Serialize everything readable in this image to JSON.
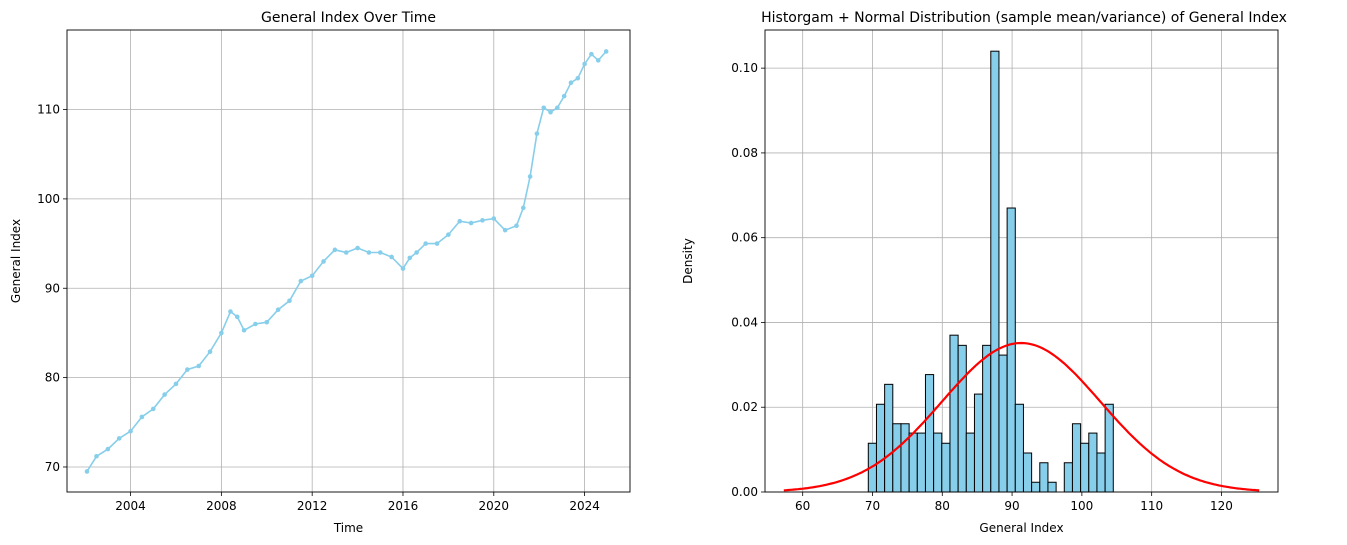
{
  "chart_data": [
    {
      "type": "line",
      "title": "General Index Over Time",
      "xlabel": "Time",
      "ylabel": "General Index",
      "xlim": [
        2001.2,
        2026.0
      ],
      "ylim": [
        67.2,
        118.9
      ],
      "xticks": [
        2004,
        2008,
        2012,
        2016,
        2020,
        2024
      ],
      "yticks": [
        70,
        80,
        90,
        100,
        110
      ],
      "grid": true,
      "color": "#87CEEB",
      "series": [
        {
          "x": [
            2002.08,
            2002.5,
            2003.0,
            2003.5,
            2004.0,
            2004.5,
            2005.0,
            2005.5,
            2006.0,
            2006.5,
            2007.0,
            2007.5,
            2008.0,
            2008.4,
            2008.7,
            2009.0,
            2009.5,
            2010.0,
            2010.5,
            2011.0,
            2011.5,
            2012.0,
            2012.5,
            2013.0,
            2013.5,
            2014.0,
            2014.5,
            2015.0,
            2015.5,
            2016.0,
            2016.3,
            2016.6,
            2017.0,
            2017.5,
            2018.0,
            2018.5,
            2019.0,
            2019.5,
            2020.0,
            2020.5,
            2021.0,
            2021.3,
            2021.6,
            2021.9,
            2022.2,
            2022.5,
            2022.8,
            2023.1,
            2023.4,
            2023.7,
            2024.0,
            2024.3,
            2024.6,
            2024.95
          ],
          "y": [
            69.5,
            71.2,
            72.0,
            73.2,
            74.0,
            75.6,
            76.5,
            78.1,
            79.3,
            80.9,
            81.3,
            82.9,
            85.0,
            87.4,
            86.8,
            85.3,
            86.0,
            86.2,
            87.6,
            88.6,
            90.8,
            91.4,
            93.0,
            94.3,
            94.0,
            94.5,
            94.0,
            94.0,
            93.5,
            92.2,
            93.4,
            94.0,
            95.0,
            95.0,
            96.0,
            97.5,
            97.3,
            97.6,
            97.8,
            96.5,
            97.0,
            99.0,
            102.5,
            107.3,
            110.2,
            109.7,
            110.2,
            111.5,
            113.0,
            113.5,
            115.1,
            116.2,
            115.5,
            116.5
          ]
        }
      ]
    },
    {
      "type": "bar",
      "title": "Historgam + Normal Distribution (sample mean/variance) of General Index",
      "xlabel": "General Index",
      "ylabel": "Density",
      "xlim": [
        54.6,
        128.1
      ],
      "ylim": [
        0,
        0.109
      ],
      "xticks": [
        60,
        70,
        80,
        90,
        100,
        110,
        120
      ],
      "yticks": [
        0.0,
        0.02,
        0.04,
        0.06,
        0.08,
        0.1
      ],
      "ytick_labels": [
        "0.00",
        "0.02",
        "0.04",
        "0.06",
        "0.08",
        "0.10"
      ],
      "grid": true,
      "bar_color": "#87CEEB",
      "curve_color": "#FF0000",
      "bin_start": 69.4,
      "bin_width": 1.17,
      "densities": [
        0.0115,
        0.0207,
        0.0254,
        0.0161,
        0.0161,
        0.0139,
        0.0139,
        0.0277,
        0.0139,
        0.0115,
        0.037,
        0.0346,
        0.0139,
        0.0231,
        0.0346,
        0.104,
        0.0323,
        0.067,
        0.0207,
        0.0092,
        0.0023,
        0.0069,
        0.0023,
        0,
        0.0069,
        0.0161,
        0.0115,
        0.0139,
        0.0092,
        0.0207
      ],
      "normal": {
        "mean": 91.3,
        "sd": 11.35,
        "x_from": 57.3,
        "x_to": 125.4
      }
    }
  ]
}
